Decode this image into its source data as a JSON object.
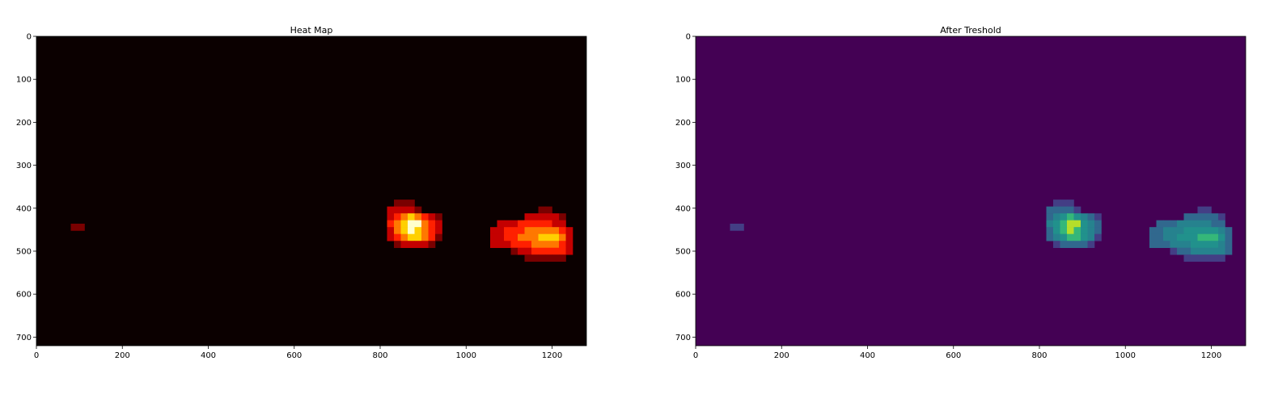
{
  "chart_data": [
    {
      "type": "heatmap",
      "title": "Heat Map",
      "colormap": "hot",
      "xlim": [
        0,
        1280
      ],
      "ylim": [
        720,
        0
      ],
      "x_ticks": [
        "0",
        "200",
        "400",
        "600",
        "800",
        "1000",
        "1200"
      ],
      "y_ticks": [
        "0",
        "100",
        "200",
        "300",
        "400",
        "500",
        "600",
        "700"
      ],
      "x_tick_values": [
        0,
        200,
        400,
        600,
        800,
        1000,
        1200
      ],
      "y_tick_values": [
        0,
        100,
        200,
        300,
        400,
        500,
        600,
        700
      ],
      "cell_size": 16,
      "background_color": "#0b0000",
      "max_value": 6,
      "cells": [
        [
          80,
          436,
          1
        ],
        [
          96,
          436,
          1
        ],
        [
          832,
          380,
          1
        ],
        [
          848,
          380,
          1
        ],
        [
          864,
          380,
          1
        ],
        [
          816,
          396,
          2
        ],
        [
          832,
          396,
          2
        ],
        [
          848,
          396,
          2
        ],
        [
          864,
          396,
          2
        ],
        [
          880,
          396,
          1
        ],
        [
          816,
          412,
          2
        ],
        [
          832,
          412,
          3
        ],
        [
          848,
          412,
          4
        ],
        [
          864,
          412,
          5
        ],
        [
          880,
          412,
          4
        ],
        [
          896,
          412,
          3
        ],
        [
          912,
          412,
          2
        ],
        [
          928,
          412,
          1
        ],
        [
          816,
          428,
          3
        ],
        [
          832,
          428,
          4
        ],
        [
          848,
          428,
          5
        ],
        [
          864,
          428,
          6
        ],
        [
          880,
          428,
          6
        ],
        [
          896,
          428,
          4
        ],
        [
          912,
          428,
          3
        ],
        [
          928,
          428,
          2
        ],
        [
          816,
          444,
          2
        ],
        [
          832,
          444,
          4
        ],
        [
          848,
          444,
          5
        ],
        [
          864,
          444,
          6
        ],
        [
          880,
          444,
          5
        ],
        [
          896,
          444,
          4
        ],
        [
          912,
          444,
          3
        ],
        [
          928,
          444,
          2
        ],
        [
          816,
          460,
          2
        ],
        [
          832,
          460,
          3
        ],
        [
          848,
          460,
          4
        ],
        [
          864,
          460,
          5
        ],
        [
          880,
          460,
          5
        ],
        [
          896,
          460,
          4
        ],
        [
          912,
          460,
          3
        ],
        [
          928,
          460,
          1
        ],
        [
          832,
          476,
          1
        ],
        [
          848,
          476,
          2
        ],
        [
          864,
          476,
          2
        ],
        [
          880,
          476,
          2
        ],
        [
          896,
          476,
          2
        ],
        [
          912,
          476,
          1
        ],
        [
          1168,
          396,
          1
        ],
        [
          1184,
          396,
          1
        ],
        [
          1136,
          412,
          2
        ],
        [
          1152,
          412,
          2
        ],
        [
          1168,
          412,
          2
        ],
        [
          1184,
          412,
          2
        ],
        [
          1200,
          412,
          2
        ],
        [
          1216,
          412,
          1
        ],
        [
          1072,
          428,
          2
        ],
        [
          1088,
          428,
          2
        ],
        [
          1104,
          428,
          2
        ],
        [
          1120,
          428,
          3
        ],
        [
          1136,
          428,
          3
        ],
        [
          1152,
          428,
          3
        ],
        [
          1168,
          428,
          3
        ],
        [
          1184,
          428,
          3
        ],
        [
          1200,
          428,
          2
        ],
        [
          1216,
          428,
          2
        ],
        [
          1056,
          444,
          2
        ],
        [
          1072,
          444,
          2
        ],
        [
          1088,
          444,
          3
        ],
        [
          1104,
          444,
          3
        ],
        [
          1120,
          444,
          3
        ],
        [
          1136,
          444,
          4
        ],
        [
          1152,
          444,
          4
        ],
        [
          1168,
          444,
          4
        ],
        [
          1184,
          444,
          4
        ],
        [
          1200,
          444,
          4
        ],
        [
          1216,
          444,
          3
        ],
        [
          1232,
          444,
          2
        ],
        [
          1056,
          460,
          2
        ],
        [
          1072,
          460,
          2
        ],
        [
          1088,
          460,
          3
        ],
        [
          1104,
          460,
          3
        ],
        [
          1120,
          460,
          4
        ],
        [
          1136,
          460,
          4
        ],
        [
          1152,
          460,
          4
        ],
        [
          1168,
          460,
          5
        ],
        [
          1184,
          460,
          5
        ],
        [
          1200,
          460,
          5
        ],
        [
          1216,
          460,
          4
        ],
        [
          1232,
          460,
          2
        ],
        [
          1056,
          476,
          2
        ],
        [
          1072,
          476,
          2
        ],
        [
          1088,
          476,
          2
        ],
        [
          1104,
          476,
          3
        ],
        [
          1120,
          476,
          3
        ],
        [
          1136,
          476,
          3
        ],
        [
          1152,
          476,
          4
        ],
        [
          1168,
          476,
          4
        ],
        [
          1184,
          476,
          4
        ],
        [
          1200,
          476,
          4
        ],
        [
          1216,
          476,
          3
        ],
        [
          1232,
          476,
          2
        ],
        [
          1104,
          492,
          1
        ],
        [
          1120,
          492,
          2
        ],
        [
          1136,
          492,
          2
        ],
        [
          1152,
          492,
          3
        ],
        [
          1168,
          492,
          3
        ],
        [
          1184,
          492,
          3
        ],
        [
          1200,
          492,
          3
        ],
        [
          1216,
          492,
          3
        ],
        [
          1232,
          492,
          2
        ],
        [
          1136,
          508,
          1
        ],
        [
          1152,
          508,
          1
        ],
        [
          1168,
          508,
          1
        ],
        [
          1184,
          508,
          1
        ],
        [
          1200,
          508,
          1
        ],
        [
          1216,
          508,
          1
        ]
      ]
    },
    {
      "type": "heatmap",
      "title": "After Treshold",
      "colormap": "viridis",
      "xlim": [
        0,
        1280
      ],
      "ylim": [
        720,
        0
      ],
      "x_ticks": [
        "0",
        "200",
        "400",
        "600",
        "800",
        "1000",
        "1200"
      ],
      "y_ticks": [
        "0",
        "100",
        "200",
        "300",
        "400",
        "500",
        "600",
        "700"
      ],
      "x_tick_values": [
        0,
        200,
        400,
        600,
        800,
        1000,
        1200
      ],
      "y_tick_values": [
        0,
        100,
        200,
        300,
        400,
        500,
        600,
        700
      ],
      "cell_size": 16,
      "background_color": "#440154",
      "max_value": 6,
      "cells": [
        [
          80,
          436,
          1
        ],
        [
          96,
          436,
          1
        ],
        [
          832,
          380,
          1
        ],
        [
          848,
          380,
          1
        ],
        [
          864,
          380,
          1
        ],
        [
          816,
          396,
          2
        ],
        [
          832,
          396,
          2
        ],
        [
          848,
          396,
          2
        ],
        [
          864,
          396,
          2
        ],
        [
          880,
          396,
          1
        ],
        [
          816,
          412,
          2
        ],
        [
          832,
          412,
          3
        ],
        [
          848,
          412,
          4
        ],
        [
          864,
          412,
          5
        ],
        [
          880,
          412,
          4
        ],
        [
          896,
          412,
          3
        ],
        [
          912,
          412,
          2
        ],
        [
          928,
          412,
          1
        ],
        [
          816,
          428,
          3
        ],
        [
          832,
          428,
          4
        ],
        [
          848,
          428,
          5
        ],
        [
          864,
          428,
          6
        ],
        [
          880,
          428,
          6
        ],
        [
          896,
          428,
          4
        ],
        [
          912,
          428,
          3
        ],
        [
          928,
          428,
          2
        ],
        [
          816,
          444,
          2
        ],
        [
          832,
          444,
          4
        ],
        [
          848,
          444,
          5
        ],
        [
          864,
          444,
          6
        ],
        [
          880,
          444,
          5
        ],
        [
          896,
          444,
          4
        ],
        [
          912,
          444,
          3
        ],
        [
          928,
          444,
          2
        ],
        [
          816,
          460,
          2
        ],
        [
          832,
          460,
          3
        ],
        [
          848,
          460,
          4
        ],
        [
          864,
          460,
          5
        ],
        [
          880,
          460,
          5
        ],
        [
          896,
          460,
          4
        ],
        [
          912,
          460,
          3
        ],
        [
          928,
          460,
          1
        ],
        [
          832,
          476,
          1
        ],
        [
          848,
          476,
          2
        ],
        [
          864,
          476,
          2
        ],
        [
          880,
          476,
          2
        ],
        [
          896,
          476,
          2
        ],
        [
          912,
          476,
          1
        ],
        [
          1168,
          396,
          1
        ],
        [
          1184,
          396,
          1
        ],
        [
          1136,
          412,
          2
        ],
        [
          1152,
          412,
          2
        ],
        [
          1168,
          412,
          2
        ],
        [
          1184,
          412,
          2
        ],
        [
          1200,
          412,
          2
        ],
        [
          1216,
          412,
          1
        ],
        [
          1072,
          428,
          2
        ],
        [
          1088,
          428,
          2
        ],
        [
          1104,
          428,
          2
        ],
        [
          1120,
          428,
          3
        ],
        [
          1136,
          428,
          3
        ],
        [
          1152,
          428,
          3
        ],
        [
          1168,
          428,
          3
        ],
        [
          1184,
          428,
          3
        ],
        [
          1200,
          428,
          2
        ],
        [
          1216,
          428,
          2
        ],
        [
          1056,
          444,
          2
        ],
        [
          1072,
          444,
          2
        ],
        [
          1088,
          444,
          3
        ],
        [
          1104,
          444,
          3
        ],
        [
          1120,
          444,
          3
        ],
        [
          1136,
          444,
          4
        ],
        [
          1152,
          444,
          4
        ],
        [
          1168,
          444,
          4
        ],
        [
          1184,
          444,
          4
        ],
        [
          1200,
          444,
          4
        ],
        [
          1216,
          444,
          3
        ],
        [
          1232,
          444,
          2
        ],
        [
          1056,
          460,
          2
        ],
        [
          1072,
          460,
          2
        ],
        [
          1088,
          460,
          3
        ],
        [
          1104,
          460,
          3
        ],
        [
          1120,
          460,
          4
        ],
        [
          1136,
          460,
          4
        ],
        [
          1152,
          460,
          4
        ],
        [
          1168,
          460,
          5
        ],
        [
          1184,
          460,
          5
        ],
        [
          1200,
          460,
          5
        ],
        [
          1216,
          460,
          4
        ],
        [
          1232,
          460,
          2
        ],
        [
          1056,
          476,
          2
        ],
        [
          1072,
          476,
          2
        ],
        [
          1088,
          476,
          2
        ],
        [
          1104,
          476,
          3
        ],
        [
          1120,
          476,
          3
        ],
        [
          1136,
          476,
          3
        ],
        [
          1152,
          476,
          4
        ],
        [
          1168,
          476,
          4
        ],
        [
          1184,
          476,
          4
        ],
        [
          1200,
          476,
          4
        ],
        [
          1216,
          476,
          3
        ],
        [
          1232,
          476,
          2
        ],
        [
          1104,
          492,
          1
        ],
        [
          1120,
          492,
          2
        ],
        [
          1136,
          492,
          2
        ],
        [
          1152,
          492,
          3
        ],
        [
          1168,
          492,
          3
        ],
        [
          1184,
          492,
          3
        ],
        [
          1200,
          492,
          3
        ],
        [
          1216,
          492,
          3
        ],
        [
          1232,
          492,
          2
        ],
        [
          1136,
          508,
          1
        ],
        [
          1152,
          508,
          1
        ],
        [
          1168,
          508,
          1
        ],
        [
          1184,
          508,
          1
        ],
        [
          1200,
          508,
          1
        ],
        [
          1216,
          508,
          1
        ]
      ]
    }
  ]
}
